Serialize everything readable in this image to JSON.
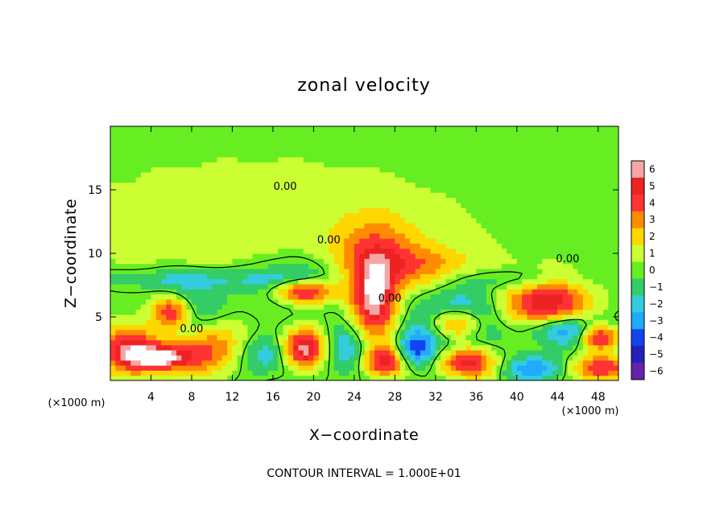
{
  "chart_data": {
    "type": "heatmap",
    "title": "zonal velocity",
    "xlabel": "X−coordinate",
    "ylabel": "Z−coordinate",
    "x_unit_left": "(×1000 m)",
    "x_unit_right": "(×1000 m)",
    "xlim": [
      0,
      50
    ],
    "ylim": [
      0,
      20
    ],
    "x_ticks": [
      4,
      8,
      12,
      16,
      20,
      24,
      28,
      32,
      36,
      40,
      44,
      48
    ],
    "x_tick_labels": [
      "4",
      "8",
      "12",
      "16",
      "20",
      "24",
      "28",
      "32",
      "36",
      "40",
      "44",
      "48"
    ],
    "y_ticks": [
      5,
      10,
      15
    ],
    "y_tick_labels": [
      "5",
      "10",
      "15"
    ],
    "colorbar": {
      "levels": [
        6,
        5,
        4,
        3,
        2,
        1,
        0,
        -1,
        -2,
        -3,
        -4,
        -5,
        -6
      ],
      "labels": [
        "6",
        "5",
        "4",
        "3",
        "2",
        "1",
        "0",
        "−1",
        "−2",
        "−3",
        "−4",
        "−5",
        "−6"
      ],
      "colors": [
        "#f4a6a6",
        "#ee2222",
        "#ff3333",
        "#ff8c00",
        "#ffd700",
        "#ccff33",
        "#66ee22",
        "#33cc66",
        "#33ccdd",
        "#22aaff",
        "#1144ee",
        "#2222bb",
        "#6622aa"
      ]
    },
    "contour_labels": [
      {
        "text": "0.00",
        "x": 17.2,
        "y": 15.0
      },
      {
        "text": "0.00",
        "x": 21.5,
        "y": 10.8
      },
      {
        "text": "0.00",
        "x": 8.0,
        "y": 3.8
      },
      {
        "text": "0.00",
        "x": 27.5,
        "y": 6.2
      },
      {
        "text": "0.00",
        "x": 45.0,
        "y": 9.3
      }
    ],
    "contour_interval_text": "CONTOUR INTERVAL = 1.000E+01",
    "features": [
      {
        "x": 15,
        "y": 12,
        "sx": 25,
        "sy": 7,
        "v": 0.9
      },
      {
        "x": 26,
        "y": 11,
        "sx": 4,
        "sy": 2.5,
        "v": 2.2
      },
      {
        "x": 30,
        "y": 9,
        "sx": 6,
        "sy": 1.8,
        "v": 2.8
      },
      {
        "x": 18,
        "y": 7.5,
        "sx": 4,
        "sy": 2,
        "v": -3.0
      },
      {
        "x": 19,
        "y": 7,
        "sx": 3,
        "sy": 1,
        "v": 6.5
      },
      {
        "x": 6,
        "y": 5.5,
        "sx": 2,
        "sy": 1.2,
        "v": 5.2
      },
      {
        "x": 8,
        "y": 6,
        "sx": 4,
        "sy": 2,
        "v": -2.2
      },
      {
        "x": 26,
        "y": 6.5,
        "sx": 2.2,
        "sy": 3,
        "v": 6.0
      },
      {
        "x": 34,
        "y": 5,
        "sx": 4,
        "sy": 2.5,
        "v": -3.5
      },
      {
        "x": 34,
        "y": 4.5,
        "sx": 2.5,
        "sy": 1.2,
        "v": 5.5
      },
      {
        "x": 43,
        "y": 6,
        "sx": 4,
        "sy": 2,
        "v": 5.5
      },
      {
        "x": 45,
        "y": 4,
        "sx": 4,
        "sy": 1.2,
        "v": -4.5
      },
      {
        "x": 48,
        "y": 3.5,
        "sx": 2,
        "sy": 1,
        "v": 6.0
      },
      {
        "x": 2,
        "y": 2.5,
        "sx": 3,
        "sy": 1.8,
        "v": 5.0
      },
      {
        "x": 5,
        "y": 1.8,
        "sx": 3,
        "sy": 1,
        "v": 6.0
      },
      {
        "x": 10,
        "y": 2.5,
        "sx": 3,
        "sy": 2,
        "v": 3.5
      },
      {
        "x": 15,
        "y": 2.0,
        "sx": 2.5,
        "sy": 1.5,
        "v": -2.5
      },
      {
        "x": 19,
        "y": 2.5,
        "sx": 2,
        "sy": 1.5,
        "v": 6.0
      },
      {
        "x": 23,
        "y": 2.5,
        "sx": 2,
        "sy": 2,
        "v": -2.5
      },
      {
        "x": 27,
        "y": 1.5,
        "sx": 2,
        "sy": 1.2,
        "v": 5.0
      },
      {
        "x": 30,
        "y": 2.5,
        "sx": 2,
        "sy": 1.5,
        "v": -4.0
      },
      {
        "x": 35,
        "y": 1.5,
        "sx": 3,
        "sy": 1.2,
        "v": 5.0
      },
      {
        "x": 42,
        "y": 1.0,
        "sx": 3,
        "sy": 1,
        "v": -3.5
      },
      {
        "x": 48,
        "y": 1.0,
        "sx": 3,
        "sy": 1,
        "v": 4.5
      },
      {
        "x": 8,
        "y": 8,
        "sx": 10,
        "sy": 0.8,
        "v": -1.8
      },
      {
        "x": 40,
        "y": 8,
        "sx": 6,
        "sy": 0.8,
        "v": -1.5
      }
    ]
  }
}
